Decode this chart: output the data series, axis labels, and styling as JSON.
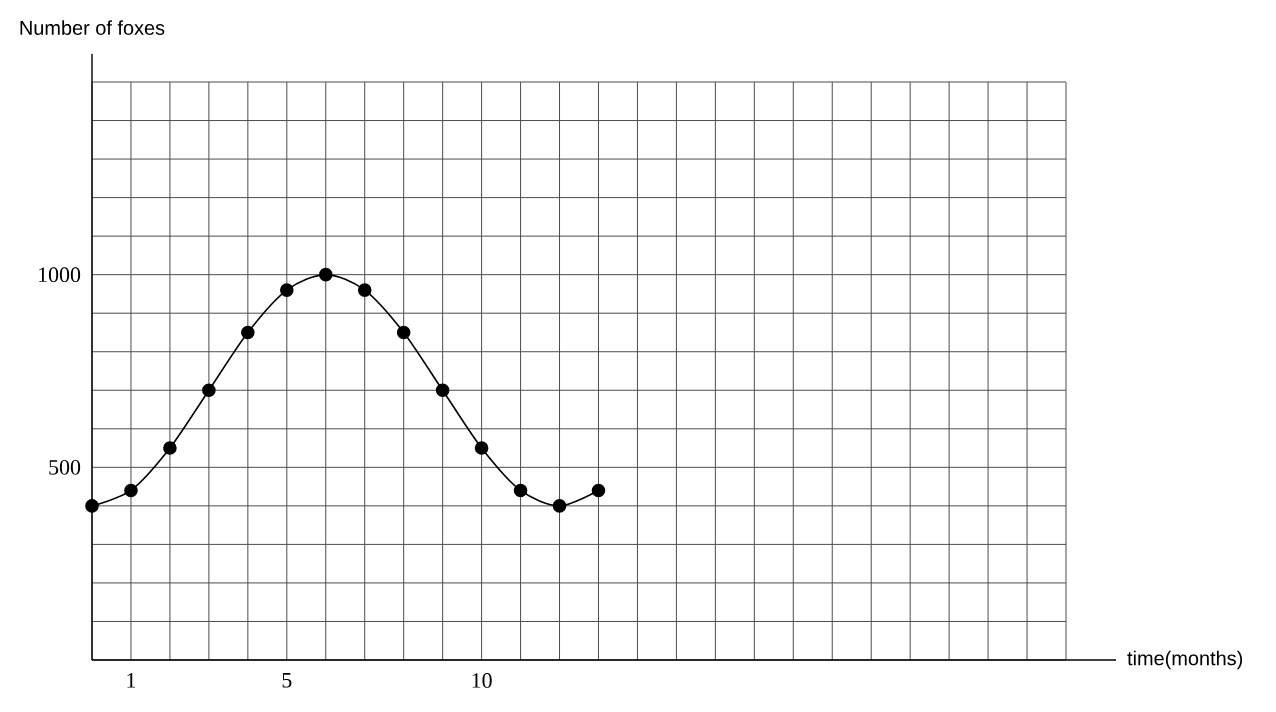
{
  "chart_data": {
    "type": "line",
    "xlabel": "time(months)",
    "ylabel": "Number of foxes",
    "x": [
      0,
      1,
      2,
      3,
      4,
      5,
      6,
      7,
      8,
      9,
      10,
      11,
      12,
      13
    ],
    "values": [
      400,
      440,
      550,
      700,
      850,
      960,
      1000,
      960,
      850,
      700,
      550,
      440,
      400,
      440
    ],
    "color": "#000000",
    "marker": "circle",
    "line_style": "solid",
    "grid": true,
    "xlim": [
      0,
      25
    ],
    "xticks": [
      {
        "value": 0,
        "label": null
      },
      1,
      {
        "value": 2,
        "label": null
      },
      {
        "value": 3,
        "label": null
      },
      {
        "value": 4,
        "label": null
      },
      5,
      {
        "value": 6,
        "label": null
      },
      {
        "value": 7,
        "label": null
      },
      {
        "value": 8,
        "label": null
      },
      {
        "value": 9,
        "label": null
      },
      10,
      {
        "value": 11,
        "label": null
      },
      {
        "value": 12,
        "label": null
      },
      {
        "value": 13,
        "label": null
      },
      {
        "value": 14,
        "label": null
      },
      {
        "value": 15,
        "label": null
      },
      {
        "value": 16,
        "label": null
      },
      {
        "value": 17,
        "label": null
      },
      {
        "value": 18,
        "label": null
      },
      {
        "value": 19,
        "label": null
      },
      {
        "value": 20,
        "label": null
      },
      {
        "value": 21,
        "label": null
      },
      {
        "value": 22,
        "label": null
      },
      {
        "value": 23,
        "label": null
      },
      {
        "value": 24,
        "label": null
      },
      {
        "value": 25,
        "label": null
      }
    ],
    "ylim": [
      0,
      1500
    ],
    "yticks": [
      {
        "value": 0,
        "label": null
      },
      {
        "value": 100,
        "label": null
      },
      {
        "value": 200,
        "label": null
      },
      {
        "value": 300,
        "label": null
      },
      {
        "value": 400,
        "label": null
      },
      500,
      {
        "value": 600,
        "label": null
      },
      {
        "value": 700,
        "label": null
      },
      {
        "value": 800,
        "label": null
      },
      {
        "value": 900,
        "label": null
      },
      1000,
      {
        "value": 1100,
        "label": null
      },
      {
        "value": 1200,
        "label": null
      },
      {
        "value": 1300,
        "label": null
      },
      {
        "value": 1400,
        "label": null
      },
      {
        "value": 1500,
        "label": null
      }
    ]
  }
}
